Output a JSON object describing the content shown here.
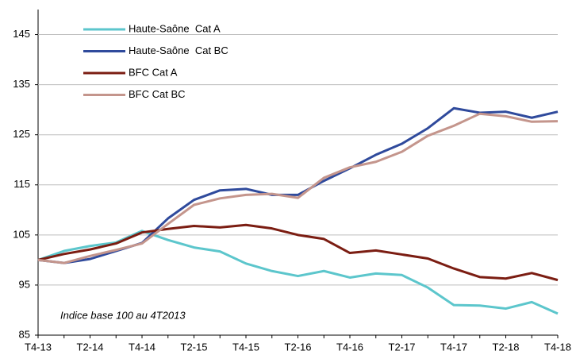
{
  "chart_data": {
    "type": "line",
    "categories": [
      "T4-13",
      null,
      "T2-14",
      null,
      "T4-14",
      null,
      "T2-15",
      null,
      "T4-15",
      null,
      "T2-16",
      null,
      "T4-16",
      null,
      "T2-17",
      null,
      "T4-17",
      null,
      "T2-18",
      null,
      "T4-18"
    ],
    "series": [
      {
        "name": "Haute-Saône  Cat A",
        "color": "#5cc6cc",
        "values": [
          100,
          101.8,
          102.8,
          103.5,
          105.8,
          104,
          102.5,
          101.7,
          99.3,
          97.8,
          96.8,
          97.8,
          96.5,
          97.3,
          97,
          94.5,
          91,
          90.9,
          90.3,
          91.6,
          89.3
        ]
      },
      {
        "name": "Haute-Saône  Cat BC",
        "color": "#2f4a9c",
        "values": [
          100,
          99.4,
          100.2,
          101.8,
          103.4,
          108.3,
          112,
          113.9,
          114.2,
          113,
          113,
          115.8,
          118.3,
          121,
          123.2,
          126.3,
          130.3,
          129.4,
          129.6,
          128.4,
          129.6
        ]
      },
      {
        "name": "BFC Cat A",
        "color": "#7b1d12",
        "values": [
          100,
          101.2,
          102.1,
          103.3,
          105.5,
          106.2,
          106.8,
          106.5,
          107,
          106.3,
          105,
          104.2,
          101.4,
          101.9,
          101.1,
          100.3,
          98.3,
          96.6,
          96.3,
          97.4,
          96
        ]
      },
      {
        "name": "BFC Cat BC",
        "color": "#c4958c",
        "values": [
          100,
          99.4,
          100.8,
          102,
          103.3,
          107.2,
          111,
          112.3,
          113,
          113.2,
          112.4,
          116.4,
          118.5,
          119.6,
          121.6,
          124.8,
          126.8,
          129.2,
          128.7,
          127.6,
          127.7
        ]
      }
    ],
    "ylim": [
      85,
      150
    ],
    "yticks": [
      85,
      95,
      105,
      115,
      125,
      135,
      145
    ],
    "grid": true,
    "annotation": "Indice base 100 au 4T2013",
    "legend": "top-left"
  }
}
